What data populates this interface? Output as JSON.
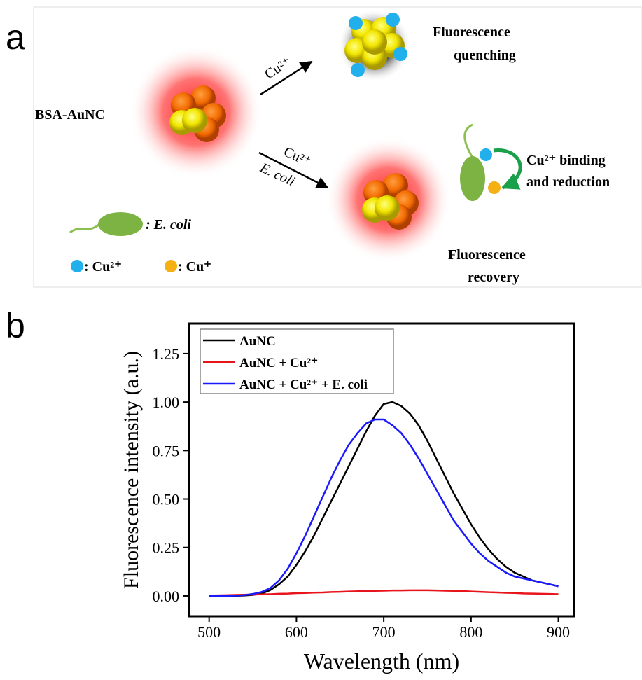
{
  "panel_a": {
    "label": "a",
    "probe": "BSA-AuNC",
    "arrow_top": "Cu²⁺",
    "arrow_bottom": [
      "Cu²⁺",
      "E. coli"
    ],
    "quenching": [
      "Fluorescence",
      "quenching"
    ],
    "binding": [
      "Cu²⁺ binding",
      "and reduction"
    ],
    "recovery": [
      "Fluorescence",
      "recovery"
    ],
    "legend": [
      ": E. coli",
      ": Cu²⁺",
      ": Cu⁺"
    ]
  },
  "panel_b": {
    "label": "b"
  },
  "chart_data": {
    "type": "line",
    "xlabel": "Wavelength (nm)",
    "ylabel": "Fluorescence intensity (a.u.)",
    "x": [
      500,
      510,
      520,
      530,
      540,
      550,
      560,
      570,
      580,
      590,
      600,
      610,
      620,
      630,
      640,
      650,
      660,
      670,
      680,
      690,
      700,
      710,
      720,
      730,
      740,
      750,
      760,
      770,
      780,
      790,
      800,
      810,
      820,
      830,
      840,
      850,
      860,
      870,
      880,
      890,
      900
    ],
    "series": [
      {
        "name": "AuNC",
        "color": "#000000",
        "values": [
          0,
          0,
          0,
          0,
          0.002,
          0.005,
          0.012,
          0.03,
          0.06,
          0.1,
          0.16,
          0.23,
          0.31,
          0.4,
          0.49,
          0.58,
          0.67,
          0.76,
          0.85,
          0.93,
          0.99,
          1.0,
          0.98,
          0.94,
          0.88,
          0.8,
          0.71,
          0.62,
          0.53,
          0.45,
          0.37,
          0.3,
          0.24,
          0.19,
          0.15,
          0.12,
          0.1,
          0.08,
          0.07,
          0.06,
          0.05
        ]
      },
      {
        "name": "AuNC + Cu²⁺",
        "color": "#e8141b",
        "values": [
          0.002,
          0.003,
          0.004,
          0.005,
          0.006,
          0.007,
          0.008,
          0.009,
          0.011,
          0.012,
          0.014,
          0.015,
          0.017,
          0.018,
          0.02,
          0.021,
          0.023,
          0.024,
          0.025,
          0.026,
          0.027,
          0.028,
          0.028,
          0.029,
          0.029,
          0.029,
          0.028,
          0.027,
          0.026,
          0.025,
          0.023,
          0.021,
          0.019,
          0.018,
          0.016,
          0.015,
          0.013,
          0.012,
          0.011,
          0.01,
          0.009
        ]
      },
      {
        "name": "AuNC + Cu²⁺ + E. coli",
        "color": "#1a1aff",
        "values": [
          0,
          0,
          0,
          0.001,
          0.004,
          0.01,
          0.02,
          0.04,
          0.08,
          0.14,
          0.22,
          0.31,
          0.41,
          0.51,
          0.61,
          0.7,
          0.78,
          0.84,
          0.89,
          0.91,
          0.91,
          0.88,
          0.84,
          0.78,
          0.71,
          0.63,
          0.55,
          0.47,
          0.39,
          0.33,
          0.27,
          0.22,
          0.18,
          0.15,
          0.12,
          0.1,
          0.09,
          0.08,
          0.07,
          0.06,
          0.05
        ]
      }
    ],
    "xlim": [
      477,
      918
    ],
    "ylim": [
      -0.105,
      1.405
    ],
    "xticks": [
      500,
      600,
      700,
      800,
      900
    ],
    "yticks": [
      {
        "value": 0,
        "label": "0.00"
      },
      {
        "value": 0.25,
        "label": "0.25"
      },
      {
        "value": 0.5,
        "label": "0.50"
      },
      {
        "value": 0.75,
        "label": "0.75"
      },
      {
        "value": 1,
        "label": "1.00"
      },
      {
        "value": 1.25,
        "label": "1.25"
      }
    ],
    "legend": "upper left"
  }
}
